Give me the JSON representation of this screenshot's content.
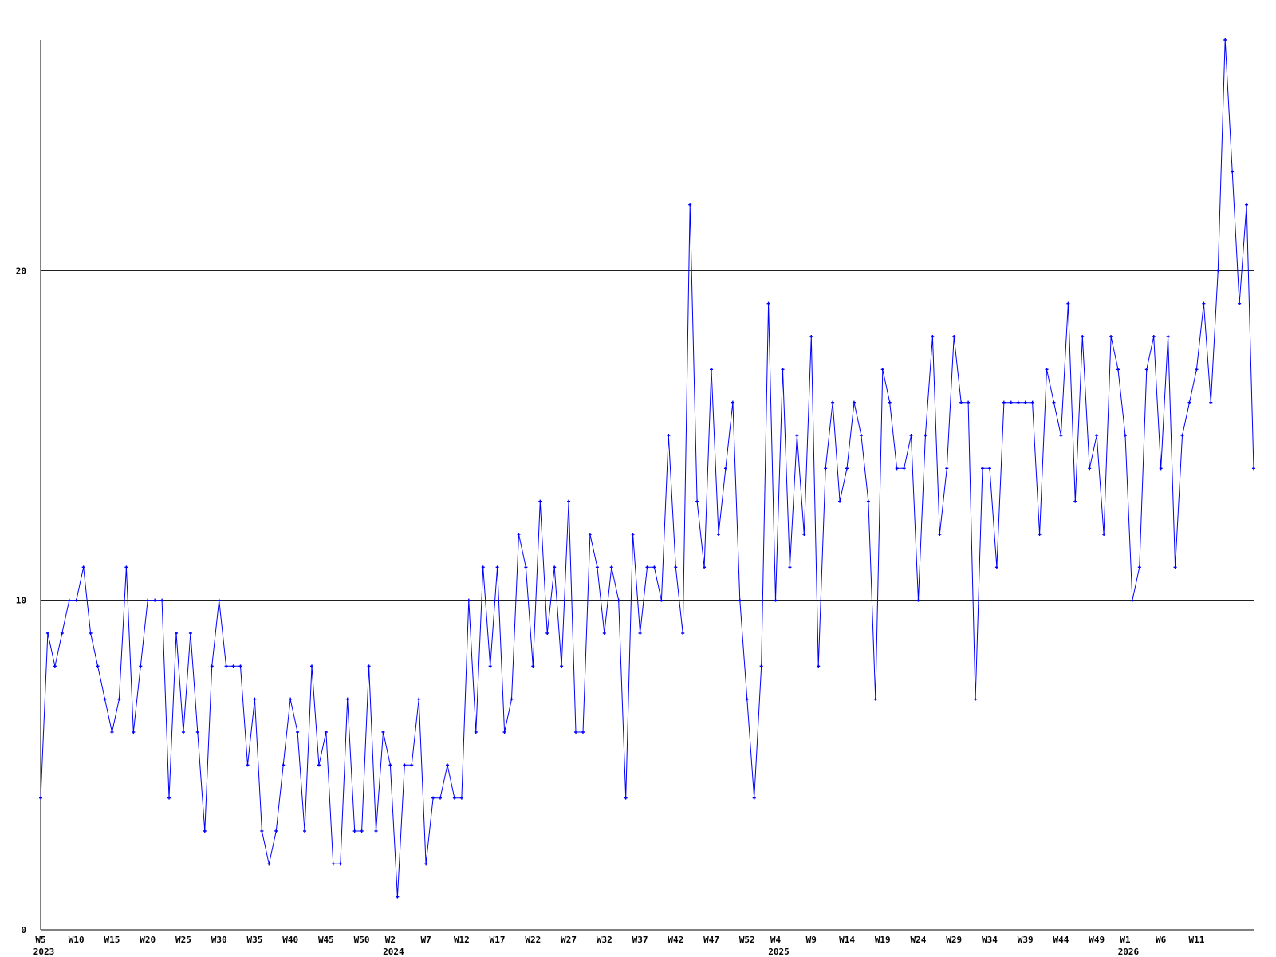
{
  "chart_data": {
    "type": "line",
    "title": "",
    "xlabel": "",
    "ylabel": "",
    "x_range": [
      "2023-W05",
      "2026-W19"
    ],
    "ylim": [
      0,
      27
    ],
    "y_ticks": [
      0,
      10,
      20
    ],
    "grid": "horizontal lines at 10 and 20",
    "line_color": "#0000ff",
    "axis_color": "#000000",
    "x_ticks": [
      {
        "week": "2023-W05",
        "label": "W5",
        "year": "2023"
      },
      {
        "week": "2023-W10",
        "label": "W10"
      },
      {
        "week": "2023-W15",
        "label": "W15"
      },
      {
        "week": "2023-W20",
        "label": "W20"
      },
      {
        "week": "2023-W25",
        "label": "W25"
      },
      {
        "week": "2023-W30",
        "label": "W30"
      },
      {
        "week": "2023-W35",
        "label": "W35"
      },
      {
        "week": "2023-W40",
        "label": "W40"
      },
      {
        "week": "2023-W45",
        "label": "W45"
      },
      {
        "week": "2023-W50",
        "label": "W50"
      },
      {
        "week": "2024-W02",
        "label": "W2",
        "year": "2024"
      },
      {
        "week": "2024-W07",
        "label": "W7"
      },
      {
        "week": "2024-W12",
        "label": "W12"
      },
      {
        "week": "2024-W17",
        "label": "W17"
      },
      {
        "week": "2024-W22",
        "label": "W22"
      },
      {
        "week": "2024-W27",
        "label": "W27"
      },
      {
        "week": "2024-W32",
        "label": "W32"
      },
      {
        "week": "2024-W37",
        "label": "W37"
      },
      {
        "week": "2024-W42",
        "label": "W42"
      },
      {
        "week": "2024-W47",
        "label": "W47"
      },
      {
        "week": "2024-W52",
        "label": "W52"
      },
      {
        "week": "2025-W04",
        "label": "W4",
        "year": "2025"
      },
      {
        "week": "2025-W09",
        "label": "W9"
      },
      {
        "week": "2025-W14",
        "label": "W14"
      },
      {
        "week": "2025-W19",
        "label": "W19"
      },
      {
        "week": "2025-W24",
        "label": "W24"
      },
      {
        "week": "2025-W29",
        "label": "W29"
      },
      {
        "week": "2025-W34",
        "label": "W34"
      },
      {
        "week": "2025-W39",
        "label": "W39"
      },
      {
        "week": "2025-W44",
        "label": "W44"
      },
      {
        "week": "2025-W49",
        "label": "W49"
      },
      {
        "week": "2026-W01",
        "label": "W1",
        "year": "2026"
      },
      {
        "week": "2026-W06",
        "label": "W6"
      },
      {
        "week": "2026-W11",
        "label": "W11"
      }
    ],
    "values": [
      4,
      9,
      8,
      9,
      10,
      10,
      11,
      9,
      8,
      7,
      6,
      7,
      11,
      6,
      8,
      10,
      10,
      10,
      4,
      9,
      6,
      9,
      6,
      3,
      8,
      10,
      8,
      8,
      8,
      5,
      7,
      3,
      2,
      3,
      5,
      7,
      6,
      3,
      8,
      5,
      6,
      2,
      2,
      7,
      3,
      3,
      8,
      3,
      6,
      5,
      1,
      5,
      5,
      7,
      2,
      4,
      4,
      5,
      4,
      4,
      10,
      6,
      11,
      8,
      11,
      6,
      7,
      12,
      11,
      8,
      13,
      9,
      11,
      8,
      13,
      6,
      6,
      12,
      11,
      9,
      11,
      10,
      4,
      12,
      9,
      11,
      11,
      10,
      15,
      11,
      9,
      22,
      13,
      11,
      17,
      12,
      14,
      16,
      10,
      7,
      4,
      8,
      19,
      10,
      17,
      11,
      15,
      12,
      18,
      8,
      14,
      16,
      13,
      14,
      16,
      15,
      13,
      7,
      17,
      16,
      14,
      14,
      15,
      10,
      15,
      18,
      12,
      14,
      18,
      16,
      16,
      7,
      14,
      14,
      11,
      16,
      16,
      16,
      16,
      16,
      12,
      17,
      16,
      15,
      19,
      13,
      18,
      14,
      15,
      12,
      18,
      17,
      15,
      10,
      11,
      17,
      18,
      14,
      18,
      11,
      15,
      16,
      17,
      19,
      16,
      20,
      27,
      23,
      19,
      22,
      14
    ]
  }
}
